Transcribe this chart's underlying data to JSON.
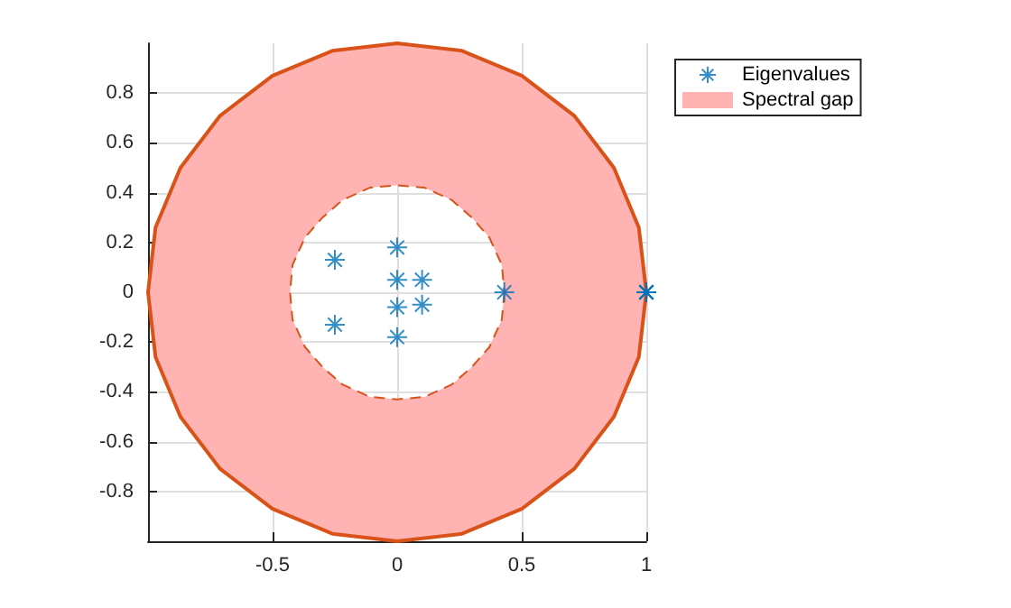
{
  "chart_data": {
    "type": "scatter",
    "xlim": [
      -1,
      1
    ],
    "ylim": [
      -1,
      1
    ],
    "xticks": [
      -0.5,
      0,
      0.5,
      1
    ],
    "yticks": [
      -0.8,
      -0.6,
      -0.4,
      -0.2,
      0,
      0.2,
      0.4,
      0.6,
      0.8
    ],
    "grid": true,
    "legend": "top right",
    "series": [
      {
        "name": "Eigenvalues",
        "marker": "cross",
        "color": "#0072bd",
        "x": [
          -0.25,
          -0.25,
          0,
          0,
          0,
          0,
          0.1,
          0.1,
          0.43,
          1,
          1,
          1
        ],
        "values": [
          0.13,
          -0.13,
          0.18,
          0.05,
          -0.06,
          -0.18,
          0.05,
          -0.05,
          0,
          0,
          0,
          0
        ]
      },
      {
        "name": "Spectral gap",
        "type": "area",
        "color": "#ffb3b3",
        "x": [
          1,
          0.97,
          0.87,
          0.71,
          0.5,
          0.26,
          0,
          -0.26,
          -0.5,
          -0.71,
          -0.87,
          -0.97,
          -1,
          -0.97,
          -0.87,
          -0.71,
          -0.5,
          -0.26,
          0,
          0.26,
          0.5,
          0.71,
          0.87,
          0.97,
          1,
          0.43,
          0.42,
          0.37,
          0.3,
          0.22,
          0.11,
          0,
          -0.11,
          -0.22,
          -0.3,
          -0.37,
          -0.42,
          -0.43,
          -0.42,
          -0.37,
          -0.3,
          -0.22,
          -0.11,
          0,
          0.11,
          0.22,
          0.3,
          0.37,
          0.42,
          0.43
        ],
        "values": [
          0,
          0.26,
          0.5,
          0.71,
          0.87,
          0.97,
          1,
          0.97,
          0.87,
          0.71,
          0.5,
          0.26,
          0,
          -0.26,
          -0.5,
          -0.71,
          -0.87,
          -0.97,
          -1,
          -0.97,
          -0.87,
          -0.71,
          -0.5,
          -0.26,
          0,
          0,
          -0.11,
          -0.22,
          -0.3,
          -0.37,
          -0.42,
          -0.43,
          -0.42,
          -0.37,
          -0.3,
          -0.22,
          -0.11,
          0,
          0.11,
          0.22,
          0.3,
          0.37,
          0.42,
          0.43,
          0.42,
          0.37,
          0.3,
          0.22,
          0.11,
          0
        ]
      }
    ]
  }
}
